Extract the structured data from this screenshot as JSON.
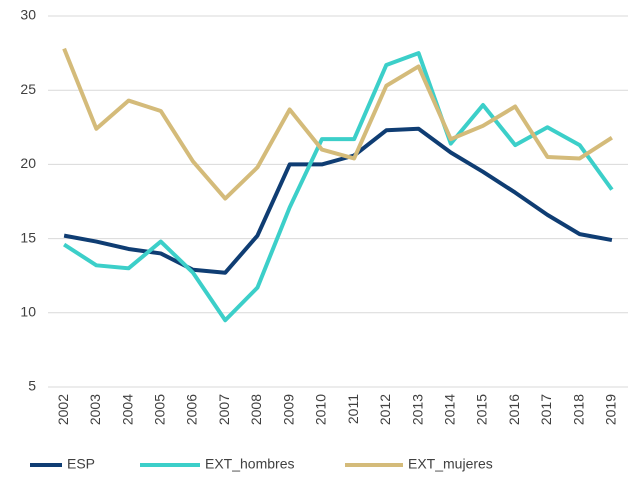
{
  "chart_data": {
    "type": "line",
    "categories": [
      "2002",
      "2003",
      "2004",
      "2005",
      "2006",
      "2007",
      "2008",
      "2009",
      "2010",
      "2011",
      "2012",
      "2013",
      "2014",
      "2015",
      "2016",
      "2017",
      "2018",
      "2019"
    ],
    "series": [
      {
        "name": "ESP",
        "color": "#0f3d73",
        "values": [
          15.2,
          14.8,
          14.3,
          14.0,
          12.9,
          12.7,
          15.2,
          20.0,
          20.0,
          20.6,
          22.3,
          22.4,
          20.8,
          19.5,
          18.1,
          16.6,
          15.3,
          14.9
        ]
      },
      {
        "name": "EXT_hombres",
        "color": "#3ccfc9",
        "values": [
          14.6,
          13.2,
          13.0,
          14.8,
          12.7,
          9.5,
          11.7,
          17.1,
          21.7,
          21.7,
          26.7,
          27.5,
          21.4,
          24.0,
          21.3,
          22.5,
          21.3,
          18.3
        ]
      },
      {
        "name": "EXT_mujeres",
        "color": "#d4bb7a",
        "values": [
          27.8,
          22.4,
          24.3,
          23.6,
          20.2,
          17.7,
          19.8,
          23.7,
          21.0,
          20.4,
          25.3,
          26.6,
          21.7,
          22.6,
          23.9,
          20.5,
          20.4,
          21.8
        ]
      }
    ],
    "ylim": [
      5,
      30
    ],
    "yticks": [
      5,
      10,
      15,
      20,
      25,
      30
    ],
    "grid": true,
    "legend": "bottom"
  }
}
